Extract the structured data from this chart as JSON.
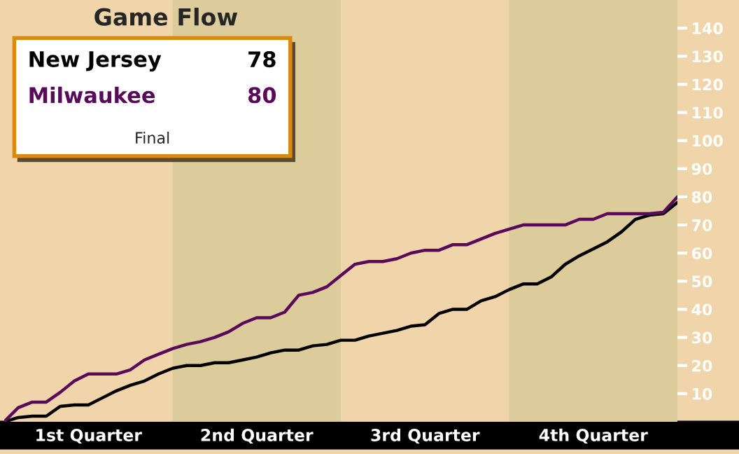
{
  "chart_data": {
    "type": "line",
    "title": "Game Flow",
    "categories": [
      null,
      null,
      null,
      null,
      null,
      null,
      null,
      null,
      null,
      null,
      null,
      null,
      null,
      null,
      null,
      null,
      null,
      null,
      null,
      null,
      null,
      null,
      null,
      null,
      null,
      null,
      null,
      null,
      null,
      null,
      null,
      null,
      null,
      null,
      null,
      null,
      null,
      null,
      null,
      null,
      null,
      null,
      null,
      null,
      null,
      null,
      null,
      null,
      null
    ],
    "series": [
      {
        "name": "New Jersey",
        "color": "#000000",
        "values": [
          0,
          1.5,
          2,
          2,
          5.5,
          6,
          6,
          8.5,
          11,
          13,
          14.5,
          17,
          19,
          20,
          20,
          21,
          21,
          22,
          23,
          24.5,
          25.5,
          25.5,
          27,
          27.5,
          29,
          29,
          30.5,
          31.5,
          32.5,
          34,
          34.5,
          38.5,
          40,
          40,
          43,
          44.5,
          47,
          49,
          49,
          51.5,
          56,
          59,
          61.5,
          64,
          67.5,
          72,
          73.5,
          74,
          78
        ]
      },
      {
        "name": "Milwaukee",
        "color": "#5a0a5a",
        "values": [
          0,
          5,
          7,
          7,
          10.5,
          14.5,
          17,
          17,
          17,
          18.5,
          22,
          24,
          26,
          27.5,
          28.5,
          30,
          32,
          35,
          37,
          37,
          39,
          45,
          46,
          48,
          52,
          56,
          57,
          57,
          58,
          60,
          61,
          61,
          63,
          63,
          65,
          67,
          68.5,
          70,
          70,
          70,
          70,
          72,
          72,
          74,
          74,
          74,
          74,
          74.5,
          80
        ]
      }
    ],
    "ylim": [
      0,
      150
    ],
    "yticks": [
      10,
      20,
      30,
      40,
      50,
      60,
      70,
      80,
      90,
      100,
      110,
      120,
      130,
      140
    ],
    "tick_labels": "y",
    "annotations": [
      "78",
      "80",
      "Final",
      "1st Quarter",
      "2nd Quarter",
      "3rd Quarter",
      "4th Quarter"
    ],
    "grid": false,
    "marker": "none",
    "line_style": "solid"
  }
}
